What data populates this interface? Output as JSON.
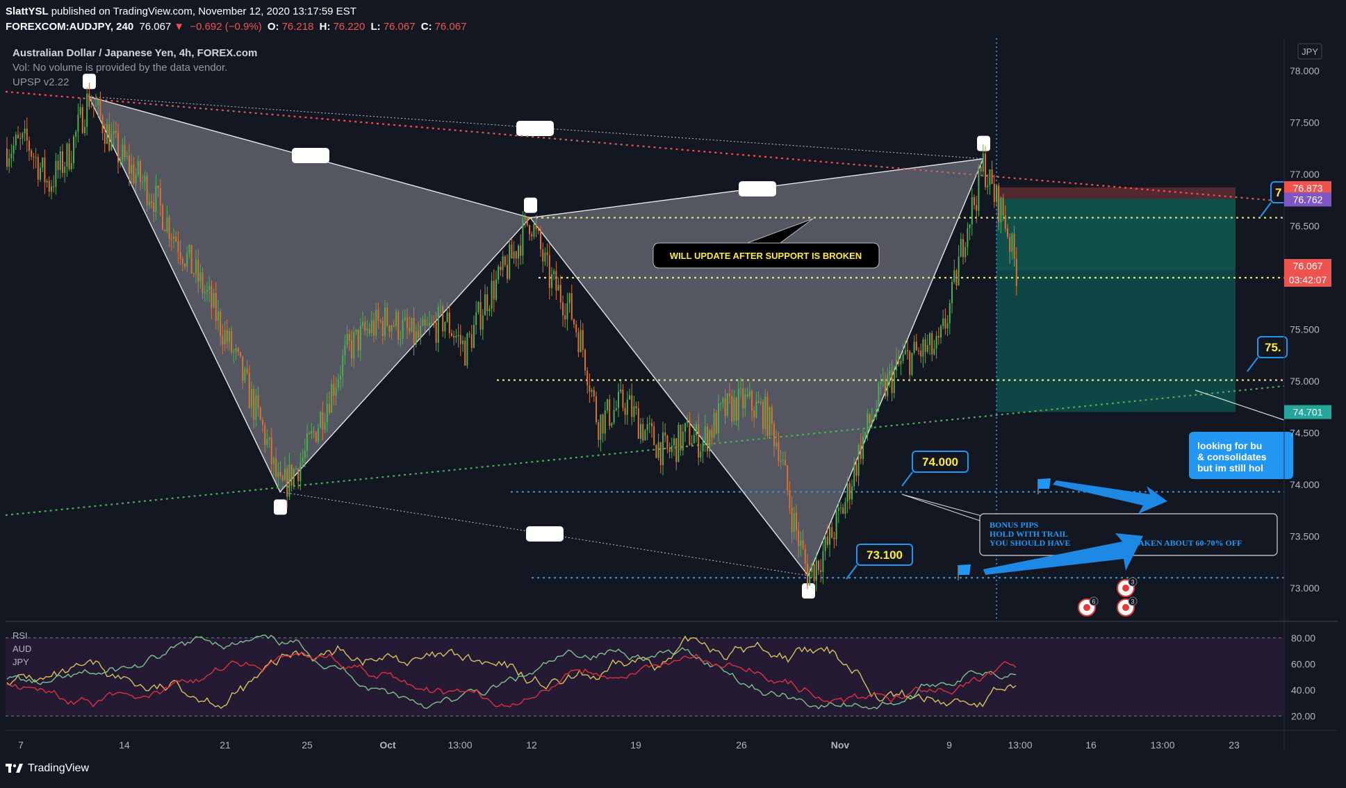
{
  "header": {
    "publisher": "SlattYSL",
    "published_text": "published on TradingView.com, November 12, 2020 13:17:59 EST",
    "symbol": "FOREXCOM:AUDJPY, 240",
    "last": "76.067",
    "change": "−0.692 (−0.9%)",
    "open_label": "O:",
    "open": "76.218",
    "high_label": "H:",
    "high": "76.220",
    "low_label": "L:",
    "low": "76.067",
    "close_label": "C:",
    "close": "76.067"
  },
  "legend": {
    "title": "Australian Dollar / Japanese Yen, 4h, FOREX.com",
    "volume_note": "Vol: No volume is provided by the data vendor.",
    "indicator": "UPSP v2.22"
  },
  "rsi_legend": {
    "rsi": "RSI",
    "aud": "AUD",
    "jpy": "JPY"
  },
  "footer": {
    "brand": "TradingView"
  },
  "colors": {
    "background": "#131722",
    "up_candle": "#4caf50",
    "down_candle": "#e0712c",
    "resistance": "#ef5350",
    "support_green": "#4caf50",
    "yellow_level": "#f5e94b",
    "blue_level": "#2196f3",
    "pattern_fill": "#8a8d96",
    "target_zone": "#0d4f4a",
    "stop_zone": "#5a2a33",
    "rsi_bg": "#2b1b3a",
    "rsi_line": "#d8c35a",
    "aud_line": "#7cc48a",
    "jpy_line": "#e0303b"
  },
  "chart_data": {
    "type": "candlestick",
    "title": "Australian Dollar / Japanese Yen, 4h, FOREX.com",
    "currency": "JPY",
    "y_range": [
      72.9,
      78.2
    ],
    "y_ticks": [
      "78.000",
      "77.500",
      "77.000",
      "76.500",
      "76.000",
      "75.500",
      "75.000",
      "74.500",
      "74.000",
      "73.500",
      "73.000"
    ],
    "x_ticks": [
      "7",
      "14",
      "21",
      "25",
      "Oct",
      "13:00",
      "12",
      "19",
      "26",
      "Nov",
      "9",
      "13:00",
      "16",
      "13:00",
      "23"
    ],
    "price_labels": [
      {
        "value": "76.873",
        "color": "#ef5350"
      },
      {
        "value": "76.762",
        "color": "#7e57c2"
      },
      {
        "value": "76.067",
        "color": "#ef5350"
      },
      {
        "value": "03:42:07",
        "color": "#ef5350"
      },
      {
        "value": "74.701",
        "color": "#26a69a"
      }
    ],
    "pattern_points": [
      {
        "label": "X",
        "date": "Sep 10",
        "price": 77.75
      },
      {
        "label": "A",
        "date": "Sep 24",
        "price": 73.93
      },
      {
        "label": "B",
        "date": "Oct 12",
        "price": 76.58
      },
      {
        "label": "C",
        "date": "Oct 30",
        "price": 73.12
      },
      {
        "label": "D",
        "date": "Nov 10",
        "price": 77.15
      }
    ],
    "levels": [
      {
        "price": 76.58,
        "style": "yellow-dotted"
      },
      {
        "price": 76.0,
        "style": "yellow-dotted"
      },
      {
        "price": 75.01,
        "style": "yellow-dotted"
      },
      {
        "price": 73.93,
        "style": "blue-dotted"
      },
      {
        "price": 73.1,
        "style": "blue-dotted"
      }
    ],
    "annotations": {
      "level_74": "74.000",
      "level_73": "73.100",
      "level_75": "75.",
      "level_77": "7",
      "update_note": "WILL UPDATE AFTER SUPPORT IS BROKEN",
      "bonus_line1": "BONUS PIPS",
      "bonus_line2": "HOLD WITH TRAIL",
      "bonus_line3": "YOU SHOULD HAVE",
      "bonus_line4": "AKEN ABOUT 60-70% OFF",
      "looking_line1": "looking  for bu",
      "looking_line2": "& consolidates",
      "looking_line3": "but im still hol"
    },
    "event_badges": [
      "6",
      "3",
      "3"
    ],
    "rsi_ticks": [
      "80.00",
      "60.00",
      "40.00",
      "20.00"
    ],
    "rsi_range": [
      10,
      90
    ]
  }
}
